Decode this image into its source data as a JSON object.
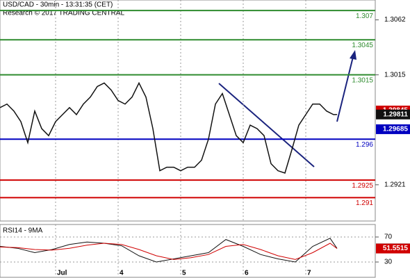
{
  "chart_data": [
    {
      "type": "line",
      "title": "USD/CAD - 30min - 13:31:35 (CET)",
      "subtitle": "Research © 2017 TRADING CENTRAL",
      "x": [
        0,
        2,
        4,
        6,
        8,
        10,
        12,
        14,
        16,
        18,
        20,
        22,
        24,
        26,
        28,
        30,
        32,
        34,
        36,
        38,
        40,
        42,
        44,
        46,
        48,
        50,
        52,
        54,
        56,
        58,
        60,
        62,
        64,
        66,
        68,
        70,
        72,
        74,
        76,
        78,
        80,
        82,
        84,
        86,
        88,
        90,
        92,
        94,
        96,
        97
      ],
      "series": [
        {
          "color": "#111111",
          "values": [
            1.2987,
            1.299,
            1.2984,
            1.2975,
            1.2957,
            1.2984,
            1.2969,
            1.2963,
            1.2975,
            1.2981,
            1.2987,
            1.2981,
            1.299,
            1.2996,
            1.3005,
            1.3008,
            1.3002,
            1.2993,
            1.299,
            1.2996,
            1.3008,
            1.2996,
            1.2969,
            1.2933,
            1.2936,
            1.2936,
            1.2933,
            1.2936,
            1.2936,
            1.2942,
            1.296,
            1.299,
            1.2999,
            1.2981,
            1.2963,
            1.2957,
            1.2972,
            1.2969,
            1.2963,
            1.2939,
            1.2933,
            1.2931,
            1.2951,
            1.2972,
            1.2981,
            1.299,
            1.299,
            1.2984,
            1.2981,
            1.29811
          ]
        }
      ],
      "levels": [
        {
          "value": 1.307,
          "color": "#2e8b2e"
        },
        {
          "value": 1.3045,
          "color": "#2e8b2e"
        },
        {
          "value": 1.3015,
          "color": "#2e8b2e"
        },
        {
          "value": 1.296,
          "color": "#0000c0"
        },
        {
          "value": 1.2925,
          "color": "#d00000"
        },
        {
          "value": 1.291,
          "color": "#d00000"
        }
      ],
      "price_labels": [
        {
          "value": 1.29845,
          "color": "#d00000"
        },
        {
          "value": 1.29685,
          "color": "#0000c0"
        }
      ],
      "ylim": [
        1.289,
        1.3079
      ],
      "yticks": [
        1.3062,
        1.3015,
        1.2921
      ],
      "xlim": [
        0,
        108
      ],
      "xticks": [
        {
          "value": 16,
          "label": "Jul"
        },
        {
          "value": 34,
          "label": "4"
        },
        {
          "value": 52,
          "label": "5"
        },
        {
          "value": 70,
          "label": "6"
        },
        {
          "value": 88,
          "label": "7"
        }
      ]
    },
    {
      "type": "line",
      "title": "RSI14 - 9MA",
      "x": [
        0,
        5,
        10,
        15,
        20,
        25,
        30,
        35,
        40,
        45,
        50,
        55,
        60,
        65,
        70,
        75,
        80,
        85,
        90,
        95,
        97
      ],
      "series": [
        {
          "color": "#111111",
          "values": [
            55,
            52,
            45,
            50,
            58,
            62,
            60,
            56,
            40,
            30,
            35,
            40,
            45,
            66,
            55,
            42,
            35,
            30,
            55,
            68,
            51.7596
          ]
        },
        {
          "color": "#d00000",
          "values": [
            54,
            53,
            50,
            49,
            52,
            57,
            60,
            58,
            50,
            40,
            34,
            37,
            42,
            55,
            58,
            50,
            40,
            34,
            45,
            60,
            51.5515
          ]
        }
      ],
      "ylim": [
        10,
        90
      ],
      "yticks": [
        70,
        30
      ],
      "xlim": [
        0,
        108
      ]
    }
  ]
}
